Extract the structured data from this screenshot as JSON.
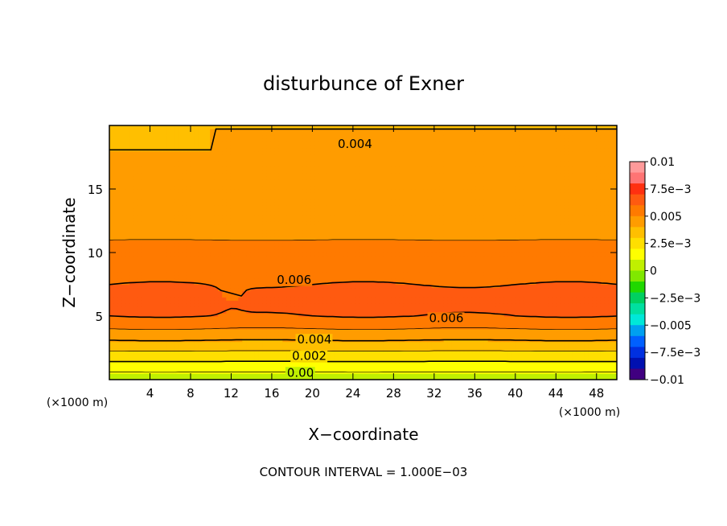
{
  "chart_data": {
    "type": "heatmap",
    "title": "disturbunce of Exner",
    "xlabel": "X−coordinate",
    "ylabel": "Z−coordinate",
    "xunit": "(×1000 m)",
    "yunit": "(×1000 m)",
    "xlim": [
      0,
      50
    ],
    "ylim": [
      0,
      20
    ],
    "xticks": [
      "4",
      "8",
      "12",
      "16",
      "20",
      "24",
      "28",
      "32",
      "36",
      "40",
      "44",
      "48"
    ],
    "xtick_values": [
      4,
      8,
      12,
      16,
      20,
      24,
      28,
      32,
      36,
      40,
      44,
      48
    ],
    "yticks": [
      "5",
      "10",
      "15"
    ],
    "ytick_values": [
      5,
      10,
      15
    ],
    "contour_interval_text": "CONTOUR INTERVAL = 1.000E−03",
    "contour_labels": [
      {
        "text": "0.004",
        "x": 22.5,
        "z": 18.3
      },
      {
        "text": "0.006",
        "x": 16.5,
        "z": 7.6
      },
      {
        "text": "0.006",
        "x": 31.5,
        "z": 4.6
      },
      {
        "text": "0.004",
        "x": 18.5,
        "z": 2.9
      },
      {
        "text": "0.002",
        "x": 18.0,
        "z": 1.6
      },
      {
        "text": "0.00",
        "x": 17.5,
        "z": 0.3
      }
    ],
    "vertical_profile": {
      "z": [
        0,
        1,
        2,
        3,
        4,
        5,
        6,
        7,
        8,
        10,
        12,
        14,
        16,
        18,
        20
      ],
      "value": [
        0.0003,
        0.0015,
        0.0027,
        0.0039,
        0.005,
        0.006,
        0.0064,
        0.0062,
        0.0058,
        0.0052,
        0.0048,
        0.0045,
        0.0042,
        0.004,
        0.0038
      ]
    },
    "colorbar": {
      "ticks": [
        "0.01",
        "7.5e−3",
        "0.005",
        "2.5e−3",
        "0",
        "−2.5e−3",
        "−0.005",
        "−7.5e−3",
        "−0.01"
      ],
      "levels": [
        0.01,
        0.0075,
        0.005,
        0.0025,
        0,
        -0.0025,
        -0.005,
        -0.0075,
        -0.01
      ],
      "colors": [
        "#ff9a9a",
        "#ff7474",
        "#ff3010",
        "#ff5a10",
        "#ff7a00",
        "#ff9c00",
        "#ffbf00",
        "#ffdf00",
        "#ffff00",
        "#c0f000",
        "#80e800",
        "#20d800",
        "#00d060",
        "#00e0a0",
        "#00e8d8",
        "#00a0f0",
        "#0060ff",
        "#0030e0",
        "#0010b0",
        "#400080"
      ]
    }
  }
}
